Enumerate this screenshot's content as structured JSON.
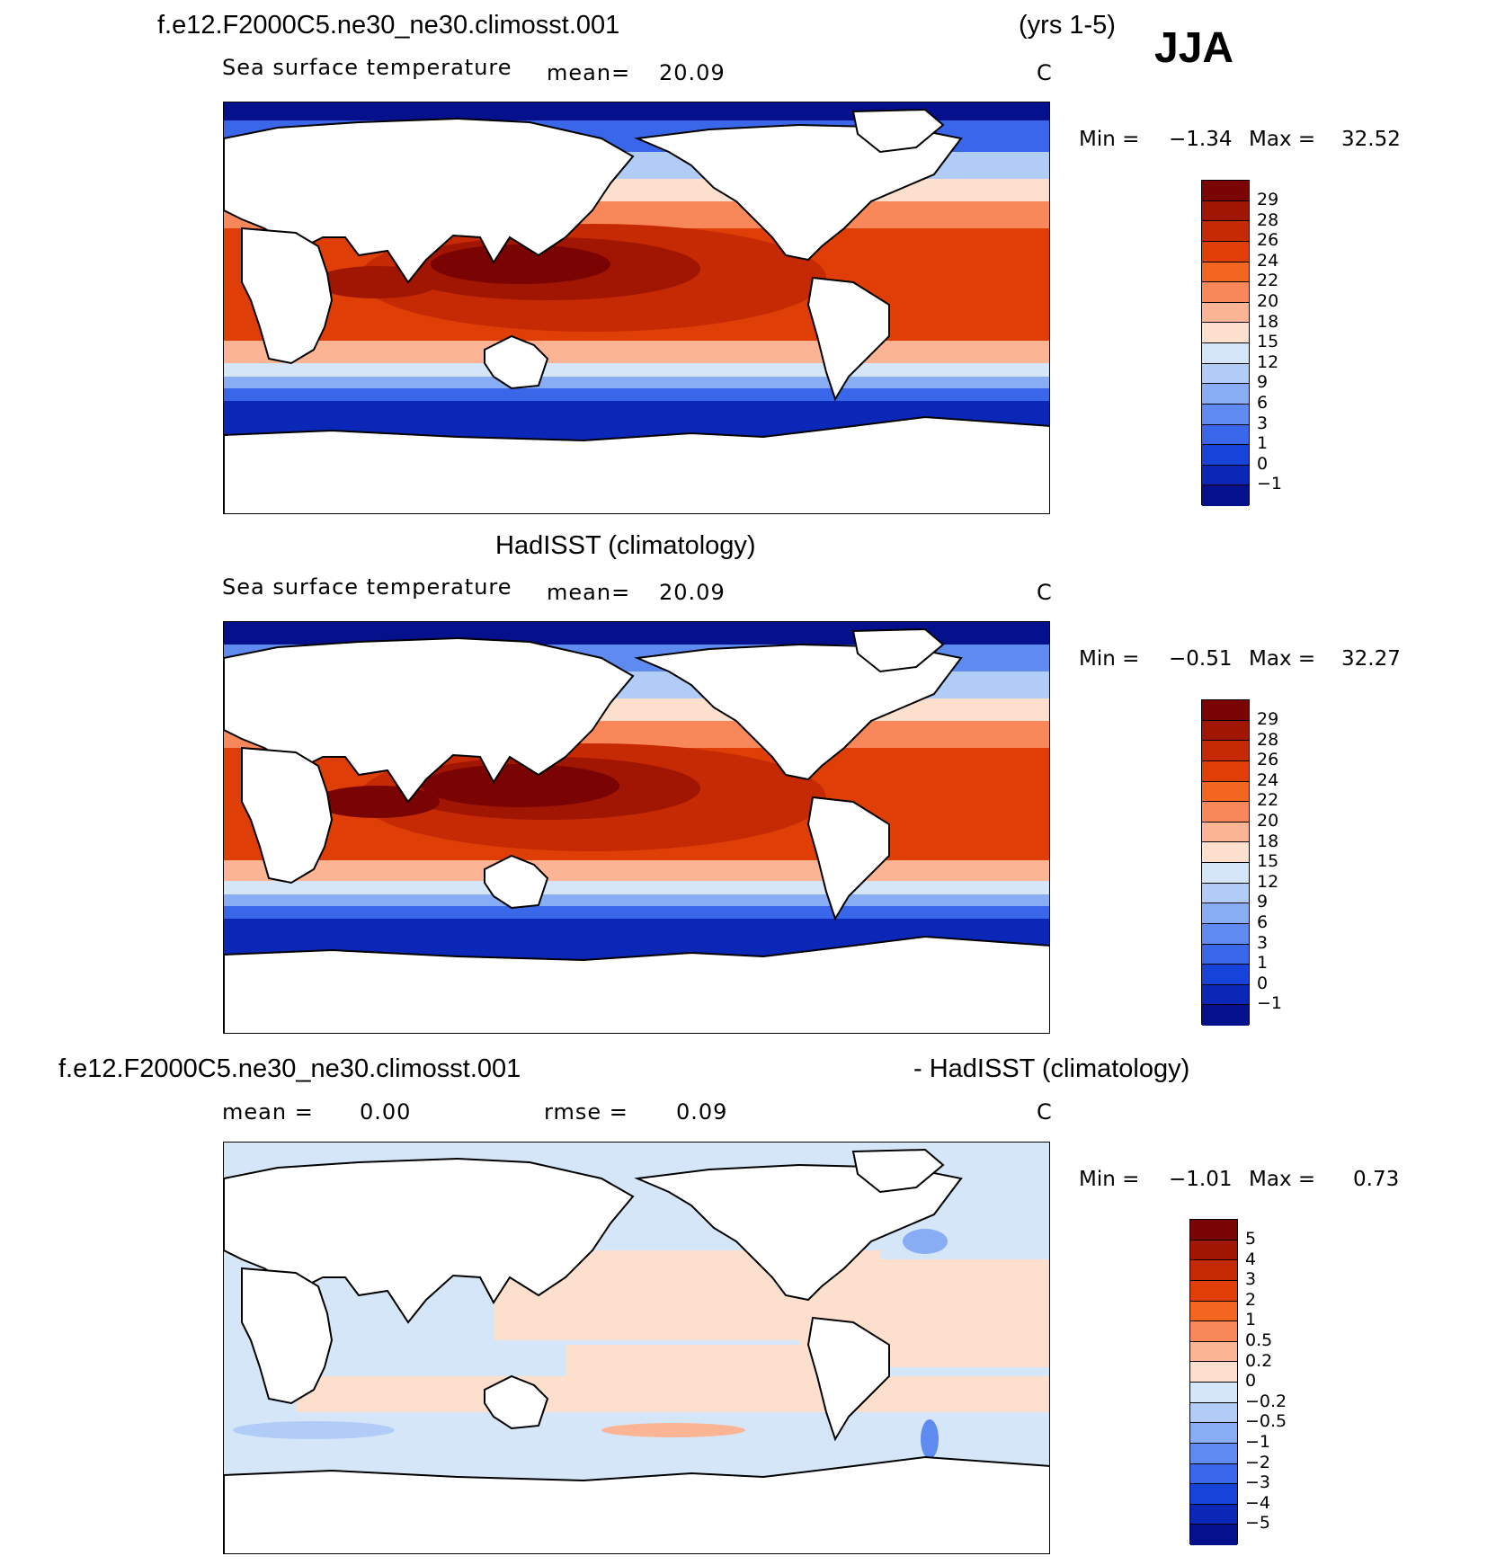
{
  "header": {
    "case_name": "f.e12.F2000C5.ne30_ne30.climosst.001",
    "years": "(yrs 1-5)",
    "season": "JJA"
  },
  "panels": [
    {
      "id": "model",
      "variable": "Sea surface temperature",
      "mean_label": "mean=",
      "mean_value": "20.09",
      "units": "C",
      "min_label": "Min =",
      "min_value": "−1.34",
      "max_label": "Max =",
      "max_value": "32.52",
      "colorbar_labels": [
        "29",
        "28",
        "26",
        "24",
        "22",
        "20",
        "18",
        "15",
        "12",
        "9",
        "6",
        "3",
        "1",
        "0",
        "−1"
      ]
    },
    {
      "id": "obs",
      "title": "HadISST (climatology)",
      "variable": "Sea surface temperature",
      "mean_label": "mean=",
      "mean_value": "20.09",
      "units": "C",
      "min_label": "Min =",
      "min_value": "−0.51",
      "max_label": "Max =",
      "max_value": "32.27",
      "colorbar_labels": [
        "29",
        "28",
        "26",
        "24",
        "22",
        "20",
        "18",
        "15",
        "12",
        "9",
        "6",
        "3",
        "1",
        "0",
        "−1"
      ]
    },
    {
      "id": "diff",
      "title_left": "f.e12.F2000C5.ne30_ne30.climosst.001",
      "title_right": "- HadISST (climatology)",
      "mean_label": "mean =",
      "mean_value": "0.00",
      "rmse_label": "rmse =",
      "rmse_value": "0.09",
      "units": "C",
      "min_label": "Min =",
      "min_value": "−1.01",
      "max_label": "Max =",
      "max_value": "0.73",
      "colorbar_labels": [
        "5",
        "4",
        "3",
        "2",
        "1",
        "0.5",
        "0.2",
        "0",
        "−0.2",
        "−0.5",
        "−1",
        "−2",
        "−3",
        "−4",
        "−5"
      ]
    }
  ],
  "colors": {
    "sst_scale": [
      "#7a0403",
      "#a11503",
      "#c52a04",
      "#df3f07",
      "#f2661f",
      "#f8885a",
      "#fbb595",
      "#fce0cd",
      "#d6e6f9",
      "#b0ccf7",
      "#89adf4",
      "#5f8bf0",
      "#3a67ea",
      "#1743d9",
      "#0b27b8",
      "#04108c"
    ],
    "diff_scale": [
      "#7a0403",
      "#a11503",
      "#c52a04",
      "#df3f07",
      "#f2661f",
      "#f8885a",
      "#fbb595",
      "#fce0cd",
      "#d6e6f9",
      "#b0ccf7",
      "#89adf4",
      "#5f8bf0",
      "#3a67ea",
      "#1743d9",
      "#0b27b8",
      "#04108c"
    ]
  }
}
